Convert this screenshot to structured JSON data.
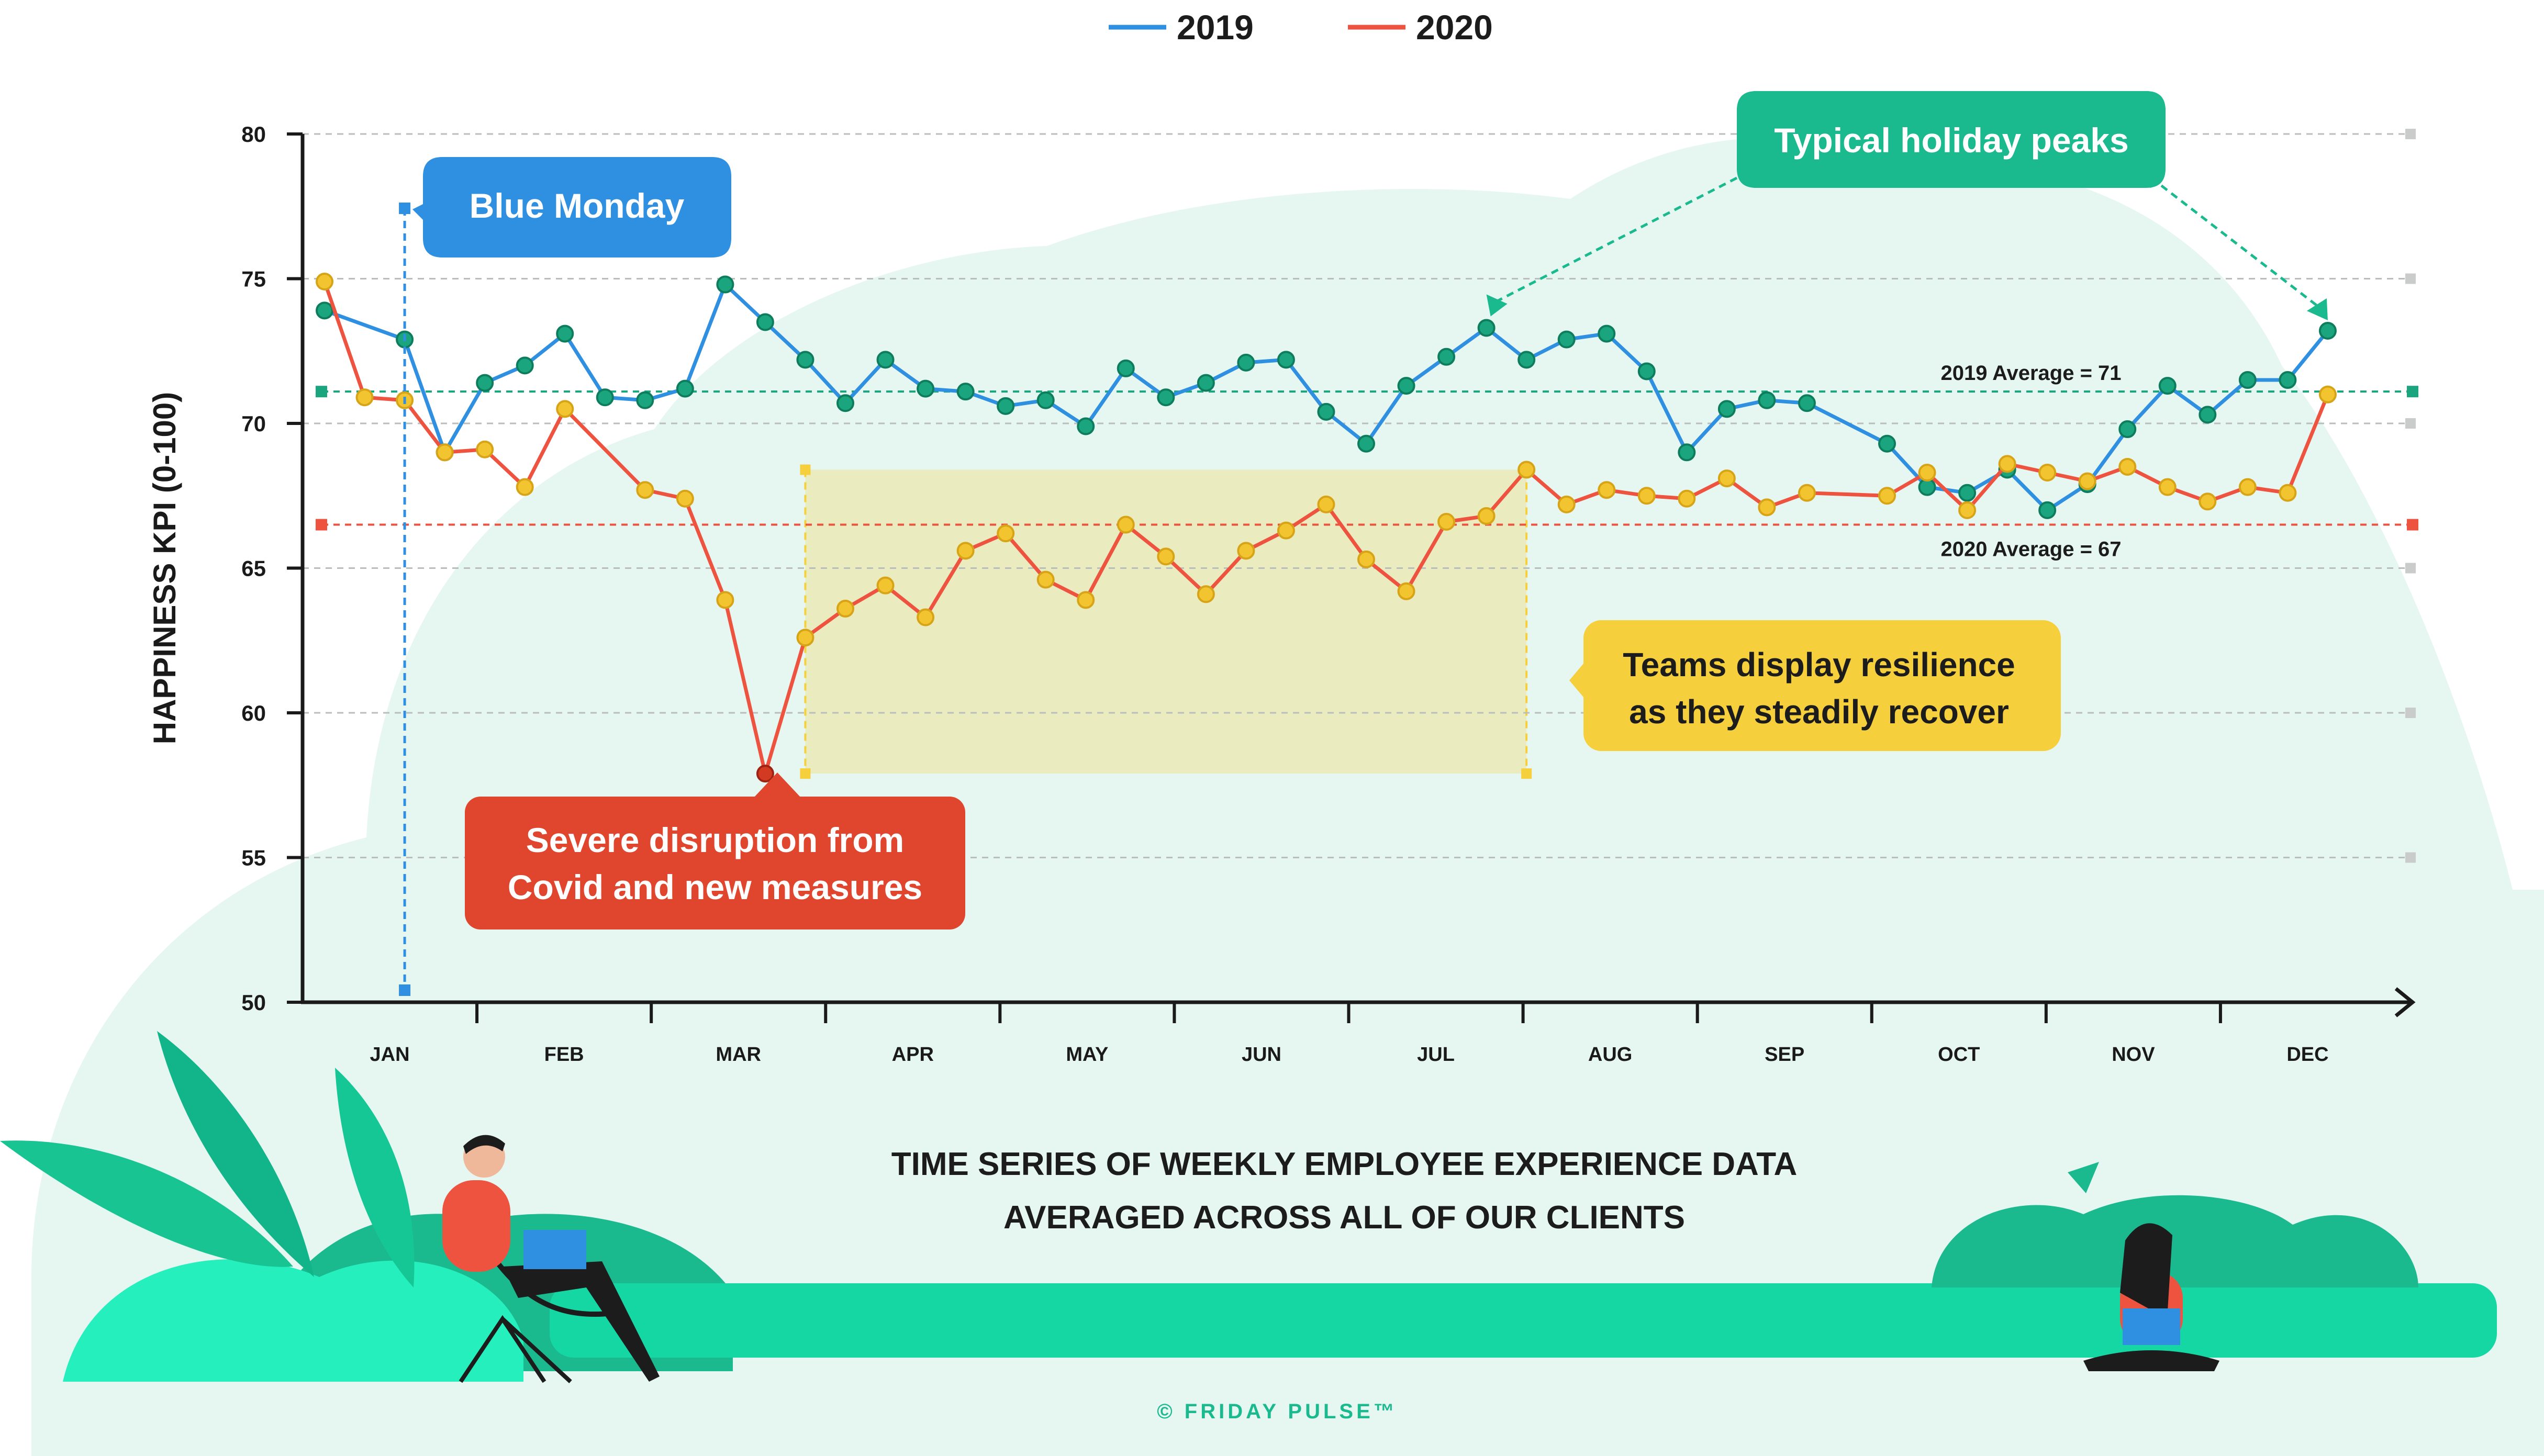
{
  "colors": {
    "line_2019": "#2f8fe0",
    "line_2020": "#ee5340",
    "marker_2019": "#1aa57f",
    "marker_2020": "#f2c430",
    "callout_blue": "#2f8fe0",
    "callout_green": "#1bb98e",
    "callout_red": "#e0452e",
    "callout_yellow": "#f5cf3c",
    "mint_background": "#e6f7f2",
    "mint_band": "#14d7a4",
    "axis": "#1a1a1a",
    "title_text": "#1c1c1c",
    "footer_text": "#1bb98e"
  },
  "chart_data": {
    "type": "line",
    "title": "TIME SERIES OF WEEKLY EMPLOYEE EXPERIENCE DATA AVERAGED ACROSS ALL OF OUR CLIENTS",
    "title_lines": [
      "TIME SERIES OF WEEKLY EMPLOYEE EXPERIENCE DATA",
      "AVERAGED ACROSS ALL OF OUR CLIENTS"
    ],
    "xlabel": "",
    "ylabel": "HAPPINESS KPI (0-100)",
    "ylim": [
      50,
      80
    ],
    "yticks": [
      50,
      55,
      60,
      65,
      70,
      75,
      80
    ],
    "xlim": [
      1,
      53
    ],
    "month_labels": [
      "JAN",
      "FEB",
      "MAR",
      "APR",
      "MAY",
      "JUN",
      "JUL",
      "AUG",
      "SEP",
      "OCT",
      "NOV",
      "DEC"
    ],
    "grid": "horizontal dashed",
    "legend_position": "top-center",
    "series": [
      {
        "name": "2019",
        "color_key": "line_2019",
        "points": [
          [
            1,
            73.9
          ],
          [
            3,
            72.9
          ],
          [
            4,
            69.0
          ],
          [
            5,
            71.4
          ],
          [
            6,
            72.0
          ],
          [
            7,
            73.1
          ],
          [
            8,
            70.9
          ],
          [
            9,
            70.8
          ],
          [
            10,
            71.2
          ],
          [
            11,
            74.8
          ],
          [
            12,
            73.5
          ],
          [
            13,
            72.2
          ],
          [
            14,
            70.7
          ],
          [
            15,
            72.2
          ],
          [
            16,
            71.2
          ],
          [
            17,
            71.1
          ],
          [
            18,
            70.6
          ],
          [
            19,
            70.8
          ],
          [
            20,
            69.9
          ],
          [
            21,
            71.9
          ],
          [
            22,
            70.9
          ],
          [
            23,
            71.4
          ],
          [
            24,
            72.1
          ],
          [
            25,
            72.2
          ],
          [
            26,
            70.4
          ],
          [
            27,
            69.3
          ],
          [
            28,
            71.3
          ],
          [
            29,
            72.3
          ],
          [
            30,
            73.3
          ],
          [
            31,
            72.2
          ],
          [
            32,
            72.9
          ],
          [
            33,
            73.1
          ],
          [
            34,
            71.8
          ],
          [
            35,
            69.0
          ],
          [
            36,
            70.5
          ],
          [
            37,
            70.8
          ],
          [
            38,
            70.7
          ],
          [
            40,
            69.3
          ],
          [
            41,
            67.8
          ],
          [
            42,
            67.6
          ],
          [
            43,
            68.4
          ],
          [
            44,
            67.0
          ],
          [
            45,
            67.9
          ],
          [
            46,
            69.8
          ],
          [
            47,
            71.3
          ],
          [
            48,
            70.3
          ],
          [
            49,
            71.5
          ],
          [
            50,
            71.5
          ],
          [
            51,
            73.2
          ]
        ]
      },
      {
        "name": "2020",
        "color_key": "line_2020",
        "points": [
          [
            1,
            74.9
          ],
          [
            2,
            70.9
          ],
          [
            3,
            70.8
          ],
          [
            4,
            69.0
          ],
          [
            5,
            69.1
          ],
          [
            6,
            67.8
          ],
          [
            7,
            70.5
          ],
          [
            9,
            67.7
          ],
          [
            10,
            67.4
          ],
          [
            11,
            63.9
          ],
          [
            12,
            57.9
          ],
          [
            13,
            62.6
          ],
          [
            14,
            63.6
          ],
          [
            15,
            64.4
          ],
          [
            16,
            63.3
          ],
          [
            17,
            65.6
          ],
          [
            18,
            66.2
          ],
          [
            19,
            64.6
          ],
          [
            20,
            63.9
          ],
          [
            21,
            66.5
          ],
          [
            22,
            65.4
          ],
          [
            23,
            64.1
          ],
          [
            24,
            65.6
          ],
          [
            25,
            66.3
          ],
          [
            26,
            67.2
          ],
          [
            27,
            65.3
          ],
          [
            28,
            64.2
          ],
          [
            29,
            66.6
          ],
          [
            30,
            66.8
          ],
          [
            31,
            68.4
          ],
          [
            32,
            67.2
          ],
          [
            33,
            67.7
          ],
          [
            34,
            67.5
          ],
          [
            35,
            67.4
          ],
          [
            36,
            68.1
          ],
          [
            37,
            67.1
          ],
          [
            38,
            67.6
          ],
          [
            40,
            67.5
          ],
          [
            41,
            68.3
          ],
          [
            42,
            67.0
          ],
          [
            43,
            68.6
          ],
          [
            44,
            68.3
          ],
          [
            45,
            68.0
          ],
          [
            46,
            68.5
          ],
          [
            47,
            67.8
          ],
          [
            48,
            67.3
          ],
          [
            49,
            67.8
          ],
          [
            50,
            67.6
          ],
          [
            51,
            71.0
          ]
        ]
      }
    ],
    "reference_lines": [
      {
        "label": "2019 Average = 71",
        "value": 71.1,
        "color_key": "marker_2019"
      },
      {
        "label": "2020 Average = 67",
        "value": 66.5,
        "color_key": "line_2020"
      }
    ],
    "annotations": [
      {
        "text": "Blue Monday",
        "color_key": "callout_blue",
        "week": 3
      },
      {
        "text": "Typical holiday peaks",
        "color_key": "callout_green",
        "weeks": [
          30,
          51
        ]
      },
      {
        "text": [
          "Severe disruption from",
          "Covid and new measures"
        ],
        "color_key": "callout_red",
        "week": 12
      },
      {
        "text": [
          "Teams display resilience",
          "as they steadily recover"
        ],
        "color_key": "callout_yellow",
        "weeks": [
          13,
          31
        ]
      }
    ]
  },
  "footer": {
    "copyright": "© FRIDAY PULSE™"
  }
}
